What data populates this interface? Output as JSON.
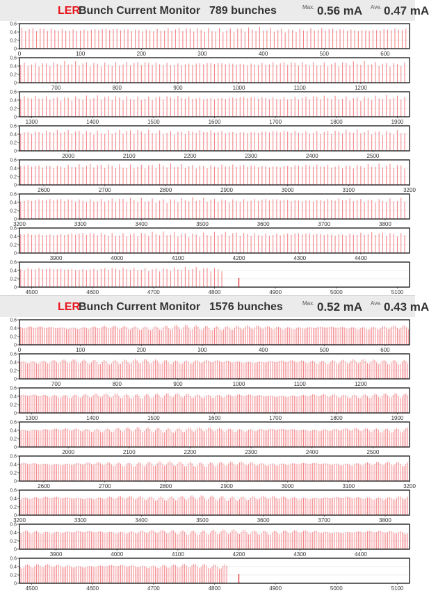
{
  "chart_data": [
    {
      "type": "bar",
      "app_label": "LER",
      "title": "Bunch Current Monitor",
      "bunch_count_text": "789 bunches",
      "max_label": "Max.",
      "max_value_text": "0.56 mA",
      "ave_label": "Ave.",
      "ave_value_text": "0.47 mA",
      "x_unit": "bucket",
      "y_unit": "mA",
      "ylim": [
        0,
        0.6
      ],
      "yticks": [
        "0.6",
        "0.4",
        "0.2",
        "0"
      ],
      "rows": [
        {
          "xlim": [
            0,
            640
          ],
          "xticks": [
            0,
            100,
            200,
            300,
            400,
            500,
            600
          ],
          "bunches": {
            "start": 4,
            "end": 636,
            "step": 6,
            "base": 0.45,
            "amp": 0.07
          }
        },
        {
          "xlim": [
            640,
            1280
          ],
          "xticks": [
            700,
            800,
            900,
            1000,
            1100,
            1200
          ],
          "bunches": {
            "start": 642,
            "end": 1276,
            "step": 6,
            "base": 0.45,
            "amp": 0.07
          }
        },
        {
          "xlim": [
            1280,
            1920
          ],
          "xticks": [
            1300,
            1400,
            1500,
            1600,
            1700,
            1800,
            1900
          ],
          "bunches": {
            "start": 1282,
            "end": 1916,
            "step": 6,
            "base": 0.45,
            "amp": 0.07
          }
        },
        {
          "xlim": [
            1920,
            2560
          ],
          "xticks": [
            2000,
            2100,
            2200,
            2300,
            2400,
            2500
          ],
          "bunches": {
            "start": 1922,
            "end": 2556,
            "step": 6,
            "base": 0.45,
            "amp": 0.07
          }
        },
        {
          "xlim": [
            2560,
            3200
          ],
          "xticks": [
            2600,
            2700,
            2800,
            2900,
            3000,
            3100,
            3200
          ],
          "bunches": {
            "start": 2562,
            "end": 3196,
            "step": 6,
            "base": 0.45,
            "amp": 0.07
          }
        },
        {
          "xlim": [
            3200,
            3840
          ],
          "xticks": [
            3200,
            3300,
            3400,
            3500,
            3600,
            3700,
            3800
          ],
          "bunches": {
            "start": 3202,
            "end": 3836,
            "step": 6,
            "base": 0.45,
            "amp": 0.07
          }
        },
        {
          "xlim": [
            3840,
            4480
          ],
          "xticks": [
            3900,
            4000,
            4100,
            4200,
            4300,
            4400
          ],
          "bunches": {
            "start": 3842,
            "end": 4476,
            "step": 6,
            "base": 0.45,
            "amp": 0.07
          }
        },
        {
          "xlim": [
            4480,
            5120
          ],
          "xticks": [
            4500,
            4600,
            4700,
            4800,
            4900,
            5000,
            5100
          ],
          "bunches": {
            "start": 4482,
            "end": 4812,
            "step": 6,
            "base": 0.43,
            "amp": 0.06
          },
          "pilot": {
            "x": 4840,
            "value": 0.22
          }
        }
      ]
    },
    {
      "type": "bar",
      "app_label": "LER",
      "title": "Bunch Current Monitor",
      "bunch_count_text": "1576 bunches",
      "max_label": "Max.",
      "max_value_text": "0.52 mA",
      "ave_label": "Ave.",
      "ave_value_text": "0.43 mA",
      "x_unit": "bucket",
      "y_unit": "mA",
      "ylim": [
        0,
        0.6
      ],
      "yticks": [
        "0.6",
        "0.4",
        "0.2",
        "0"
      ],
      "rows": [
        {
          "xlim": [
            0,
            640
          ],
          "xticks": [
            0,
            100,
            200,
            300,
            400,
            500,
            600
          ],
          "bunches": {
            "start": 2,
            "end": 638,
            "step": 3,
            "base": 0.41,
            "amp": 0.07
          }
        },
        {
          "xlim": [
            640,
            1280
          ],
          "xticks": [
            700,
            800,
            900,
            1000,
            1100,
            1200
          ],
          "bunches": {
            "start": 641,
            "end": 1277,
            "step": 3,
            "base": 0.41,
            "amp": 0.07
          }
        },
        {
          "xlim": [
            1280,
            1920
          ],
          "xticks": [
            1300,
            1400,
            1500,
            1600,
            1700,
            1800,
            1900
          ],
          "bunches": {
            "start": 1281,
            "end": 1917,
            "step": 3,
            "base": 0.41,
            "amp": 0.07
          }
        },
        {
          "xlim": [
            1920,
            2560
          ],
          "xticks": [
            2000,
            2100,
            2200,
            2300,
            2400,
            2500
          ],
          "bunches": {
            "start": 1921,
            "end": 2557,
            "step": 3,
            "base": 0.41,
            "amp": 0.07
          }
        },
        {
          "xlim": [
            2560,
            3200
          ],
          "xticks": [
            2600,
            2700,
            2800,
            2900,
            3000,
            3100,
            3200
          ],
          "bunches": {
            "start": 2561,
            "end": 3197,
            "step": 3,
            "base": 0.41,
            "amp": 0.07
          }
        },
        {
          "xlim": [
            3200,
            3840
          ],
          "xticks": [
            3200,
            3300,
            3400,
            3500,
            3600,
            3700,
            3800
          ],
          "bunches": {
            "start": 3201,
            "end": 3837,
            "step": 3,
            "base": 0.41,
            "amp": 0.07
          }
        },
        {
          "xlim": [
            3840,
            4480
          ],
          "xticks": [
            3900,
            4000,
            4100,
            4200,
            4300,
            4400
          ],
          "bunches": {
            "start": 3841,
            "end": 4477,
            "step": 3,
            "base": 0.41,
            "amp": 0.07
          }
        },
        {
          "xlim": [
            4480,
            5120
          ],
          "xticks": [
            4500,
            4600,
            4700,
            4800,
            4900,
            5000,
            5100
          ],
          "bunches": {
            "start": 4481,
            "end": 4820,
            "step": 3,
            "base": 0.41,
            "amp": 0.07
          },
          "pilot": {
            "x": 4840,
            "value": 0.22
          }
        }
      ]
    }
  ],
  "colors": {
    "bar": "#f4888c",
    "app_label": "#e8141b",
    "title_bg": "#ebebeb",
    "frame": "#111111",
    "grid": "#d9d9d9"
  }
}
